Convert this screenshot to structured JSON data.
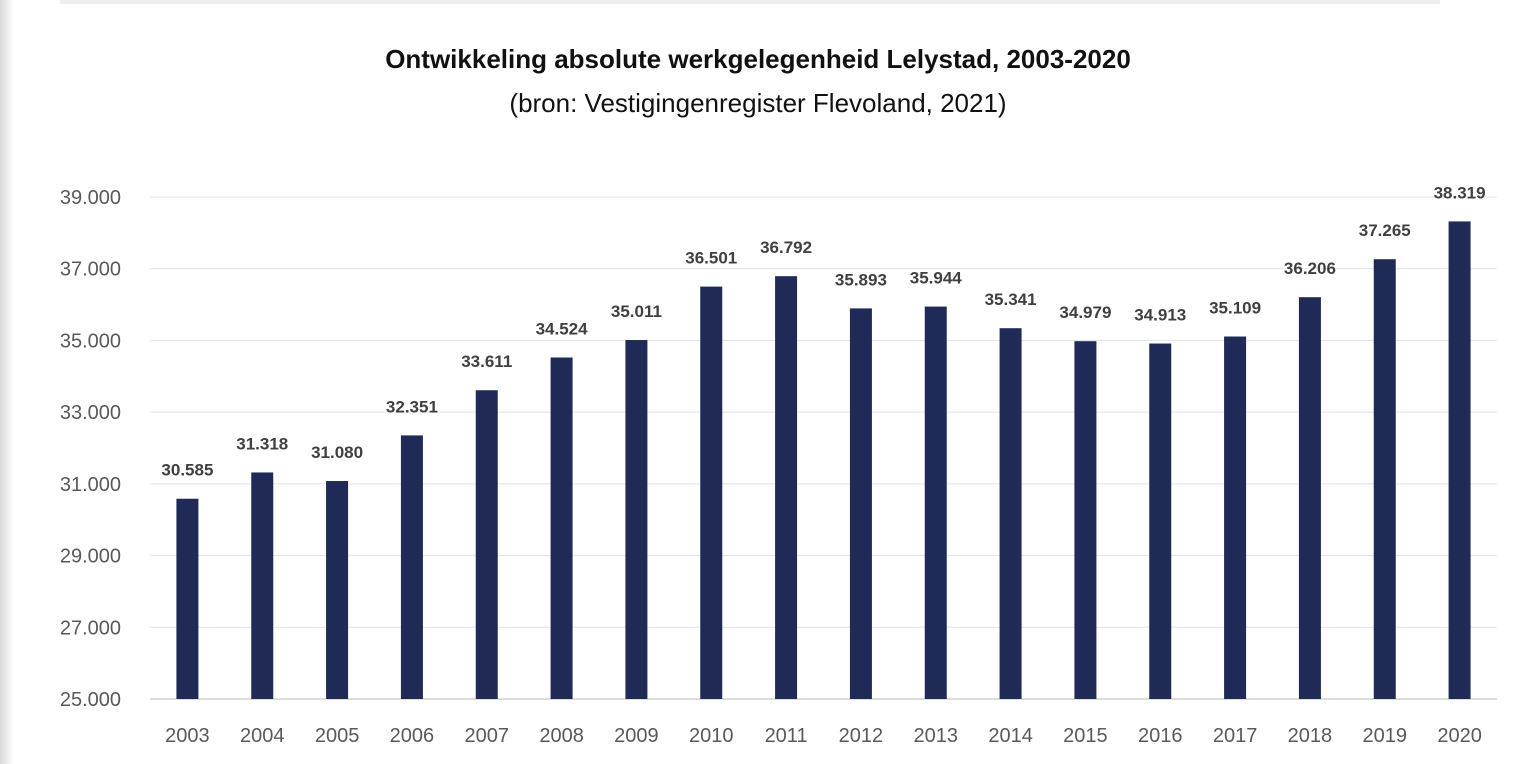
{
  "chart_data": {
    "type": "bar",
    "title": "Ontwikkeling absolute werkgelegenheid Lelystad, 2003-2020",
    "subtitle": "(bron: Vestigingenregister Flevoland, 2021)",
    "xlabel": "",
    "ylabel": "",
    "ylim": [
      25000,
      39000
    ],
    "yticks": [
      25000,
      27000,
      29000,
      31000,
      33000,
      35000,
      37000,
      39000
    ],
    "ytick_labels": [
      "25.000",
      "27.000",
      "29.000",
      "31.000",
      "33.000",
      "35.000",
      "37.000",
      "39.000"
    ],
    "categories": [
      "2003",
      "2004",
      "2005",
      "2006",
      "2007",
      "2008",
      "2009",
      "2010",
      "2011",
      "2012",
      "2013",
      "2014",
      "2015",
      "2016",
      "2017",
      "2018",
      "2019",
      "2020"
    ],
    "values": [
      30585,
      31318,
      31080,
      32351,
      33611,
      34524,
      35011,
      36501,
      36792,
      35893,
      35944,
      35341,
      34979,
      34913,
      35109,
      36206,
      37265,
      38319
    ],
    "value_labels": [
      "30.585",
      "31.318",
      "31.080",
      "32.351",
      "33.611",
      "34.524",
      "35.011",
      "36.501",
      "36.792",
      "35.893",
      "35.944",
      "35.341",
      "34.979",
      "34.913",
      "35.109",
      "36.206",
      "37.265",
      "38.319"
    ],
    "grid": true,
    "legend": "none",
    "colors": {
      "bar": "#1f2a56",
      "grid": "#e3e3e3",
      "axis": "#d0d0d0"
    }
  }
}
